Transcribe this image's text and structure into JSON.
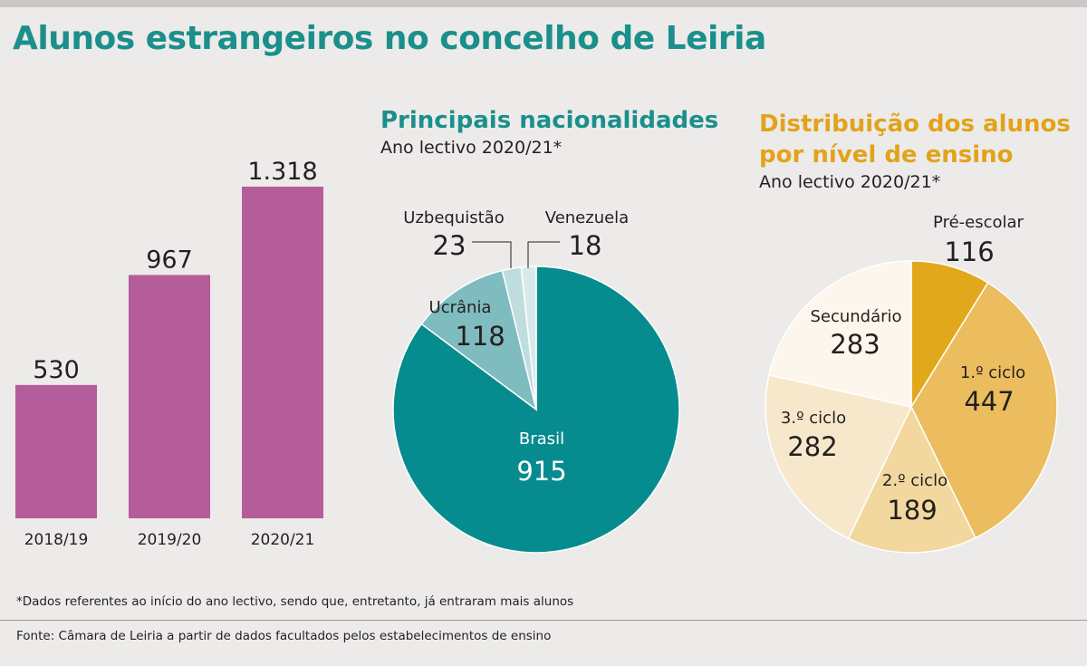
{
  "title": "Alunos estrangeiros no concelho de Leiria",
  "footnote": "*Dados referentes ao início do ano lectivo,  sendo que, entretanto, já entraram mais alunos",
  "source": "Fonte: Câmara de Leiria a partir de dados facultados pelos estabelecimentos de ensino",
  "colors": {
    "title": "#1b8f8c",
    "bars": "#b55c9b",
    "gold_heading": "#e2a31a"
  },
  "chart_data": [
    {
      "type": "bar",
      "title": "",
      "categories": [
        "2018/19",
        "2019/20",
        "2020/21"
      ],
      "values": [
        530,
        967,
        1318
      ],
      "value_labels": [
        "530",
        "967",
        "1.318"
      ],
      "xlabel": "",
      "ylabel": "",
      "ylim": [
        0,
        1318
      ],
      "grid": false,
      "color": "#b55c9b"
    },
    {
      "type": "pie",
      "title": "Principais nacionalidades",
      "subtitle": "Ano lectivo 2020/21*",
      "slices": [
        {
          "label": "Brasil",
          "value": 915,
          "color": "#068c8e"
        },
        {
          "label": "Ucrânia",
          "value": 118,
          "color": "#7fbcbf"
        },
        {
          "label": "Uzbequistão",
          "value": 23,
          "color": "#c0dddd"
        },
        {
          "label": "Venezuela",
          "value": 18,
          "color": "#d8e9e8"
        }
      ]
    },
    {
      "type": "pie",
      "title": "Distribuição dos alunos por nível de ensino",
      "subtitle": "Ano lectivo 2020/21*",
      "slices": [
        {
          "label": "Pré-escolar",
          "value": 116,
          "color": "#e2a81c"
        },
        {
          "label": "1.º ciclo",
          "value": 447,
          "color": "#ebbd5e"
        },
        {
          "label": "2.º ciclo",
          "value": 189,
          "color": "#f2d89e"
        },
        {
          "label": "3.º ciclo",
          "value": 282,
          "color": "#f7e8cb"
        },
        {
          "label": "Secundário",
          "value": 283,
          "color": "#fcf6ec"
        }
      ]
    }
  ]
}
